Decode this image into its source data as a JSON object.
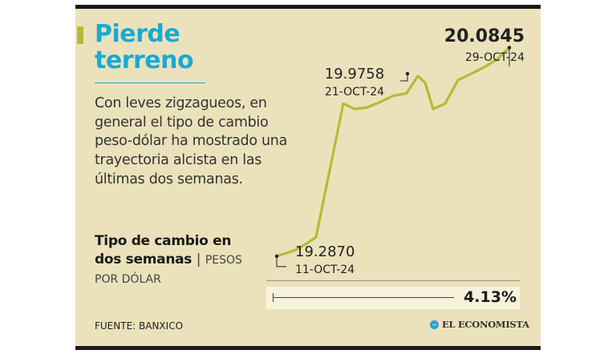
{
  "title": "Pierde terreno",
  "description": "Con leves zigzagueos, en general el tipo de cambio peso-dólar ha mostrado una trayectoria alcista en las últimas dos semanas.",
  "subtitle": {
    "main": "Tipo de cambio en dos semanas",
    "separator": "|",
    "unit": "PESOS POR DÓLAR"
  },
  "source": "FUENTE: BANXICO",
  "brand": "EL ECONOMISTA",
  "percent_change": "4.13%",
  "colors": {
    "background": "#ebe2bc",
    "title": "#1aaad3",
    "line": "#b5bb38",
    "accent_bar": "#b5bb38"
  },
  "chart_data": {
    "type": "line",
    "series": [
      {
        "values": [
          19.287,
          19.31,
          19.335,
          19.36,
          19.87,
          19.85,
          19.855,
          19.875,
          19.9,
          19.91,
          19.9758,
          19.95,
          19.85,
          19.87,
          19.96,
          19.985,
          20.01,
          20.04,
          20.0845
        ]
      }
    ],
    "annotations": [
      {
        "label": "start",
        "value_text": "19.2870",
        "date_text": "11-OCT-24",
        "index": 0
      },
      {
        "label": "mid",
        "value_text": "19.9758",
        "date_text": "21-OCT-24",
        "index": 10
      },
      {
        "label": "end",
        "value_text": "20.0845",
        "date_text": "29-OCT-24",
        "index": 18
      }
    ],
    "ylim": [
      19.25,
      20.15
    ]
  }
}
